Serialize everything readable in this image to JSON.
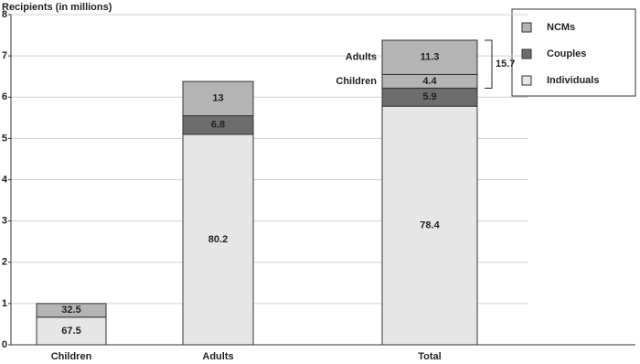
{
  "chart_data": {
    "type": "stacked_bar",
    "y_axis_label": "Recipients (in millions)",
    "categories": [
      "Children",
      "Adults",
      "Total"
    ],
    "ylim": [
      0,
      8
    ],
    "yticks": [
      0,
      1,
      2,
      3,
      4,
      5,
      6,
      7,
      8
    ],
    "grid": true,
    "series": [
      {
        "name": "Individuals",
        "color": "#e6e6e6",
        "values": [
          0.67,
          5.1,
          5.78
        ],
        "percents": [
          67.5,
          80.2,
          78.4
        ]
      },
      {
        "name": "Couples",
        "color": "#6d6d6d",
        "values": [
          null,
          0.45,
          0.44
        ],
        "percents": [
          null,
          6.8,
          5.9
        ]
      },
      {
        "name": "NCMs",
        "color": "#b4b4b4",
        "values": [
          0.33,
          0.83,
          null
        ],
        "percents": [
          32.5,
          13.0,
          null
        ]
      }
    ],
    "split": {
      "category": 2,
      "color": "#b4b4b4",
      "labels": [
        "Children",
        "Adults"
      ],
      "values": [
        0.33,
        0.83
      ],
      "percents": [
        4.4,
        11.3
      ],
      "bracket_label": 15.7
    }
  }
}
